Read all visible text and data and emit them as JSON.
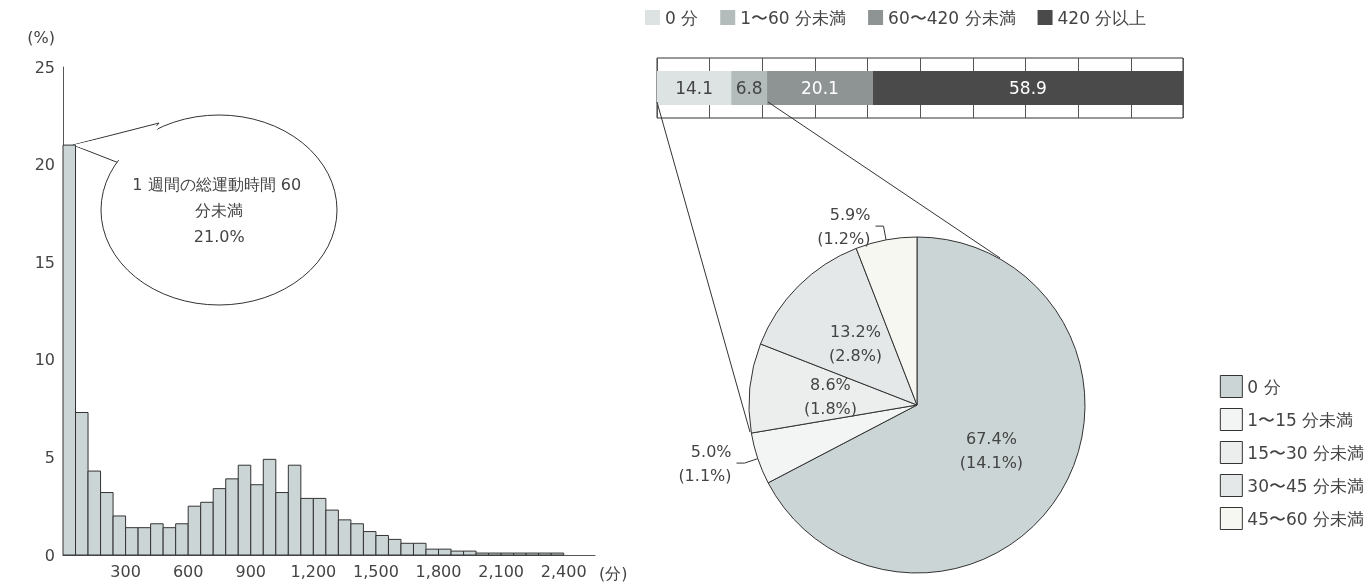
{
  "chart_data": [
    {
      "type": "histogram",
      "ylabel": "(%)",
      "xlabel": "(分)",
      "color": "#ccd5d5",
      "bins": [
        0,
        60,
        120,
        180,
        240,
        300,
        360,
        420,
        480,
        540,
        600,
        660,
        720,
        780,
        840,
        900,
        960,
        1020,
        1080,
        1140,
        1200,
        1260,
        1320,
        1380,
        1440,
        1500,
        1560,
        1620,
        1680,
        1740,
        1800,
        1860,
        1920,
        1980,
        2040,
        2100,
        2160,
        2220,
        2280,
        2340,
        2400
      ],
      "values": [
        21.0,
        7.3,
        4.3,
        3.2,
        2.0,
        1.4,
        1.4,
        1.6,
        1.4,
        1.6,
        2.5,
        2.7,
        3.4,
        3.9,
        4.6,
        3.6,
        4.9,
        3.2,
        4.6,
        2.9,
        2.9,
        2.3,
        1.8,
        1.6,
        1.2,
        1.0,
        0.8,
        0.6,
        0.6,
        0.3,
        0.3,
        0.2,
        0.2,
        0.1,
        0.1,
        0.1,
        0.1,
        0.1,
        0.1,
        0.1
      ],
      "xlim": [
        0,
        2550
      ],
      "xticks": [
        300,
        600,
        900,
        {
          "value": 1200,
          "label": "1,200"
        },
        {
          "value": 1500,
          "label": "1,500"
        },
        {
          "value": 1800,
          "label": "1,800"
        },
        {
          "value": 2100,
          "label": "2,100"
        },
        {
          "value": 2400,
          "label": "2,400"
        }
      ],
      "ylim": [
        0,
        25
      ],
      "yticks": [
        0,
        5,
        10,
        15,
        20,
        25
      ],
      "annotations": [
        {
          "text": "1 週間の総運動時間 60 分未満\n21.0%",
          "x": 30,
          "y": 21
        }
      ]
    },
    {
      "type": "bar",
      "orientation": "horizontal",
      "stacked": true,
      "categories": [
        null
      ],
      "series": [
        {
          "name": "0 分",
          "color": "#dde3e3",
          "values": [
            14.1
          ]
        },
        {
          "name": "1〜60 分未満",
          "color": "#b3bbbb",
          "values": [
            6.8
          ]
        },
        {
          "name": "60〜420 分未満",
          "color": "#8e9393",
          "values": [
            20.1
          ]
        },
        {
          "name": "420 分以上",
          "color": "#4a4a4a",
          "values": [
            58.9
          ]
        }
      ],
      "data_labels": true,
      "tick_labels": false,
      "grid": "x",
      "legend": "top"
    },
    {
      "type": "pie",
      "categories": [
        "0 分",
        "1〜15 分未満",
        "15〜30 分未満",
        "30〜45 分未満",
        "45〜60 分未満"
      ],
      "values": [
        67.4,
        5.0,
        8.6,
        13.2,
        5.9
      ],
      "colors": [
        "#ccd5d5",
        "#f3f5f5",
        "#eceeee",
        "#e4e8e8",
        "#f7f7f2"
      ],
      "value_labels": [
        "67.4%\n(14.1%)",
        "5.0%\n(1.1%)",
        "8.6%\n(1.8%)",
        "13.2%\n(2.8%)",
        "5.9%\n(1.2%)"
      ],
      "legend": "right"
    }
  ]
}
